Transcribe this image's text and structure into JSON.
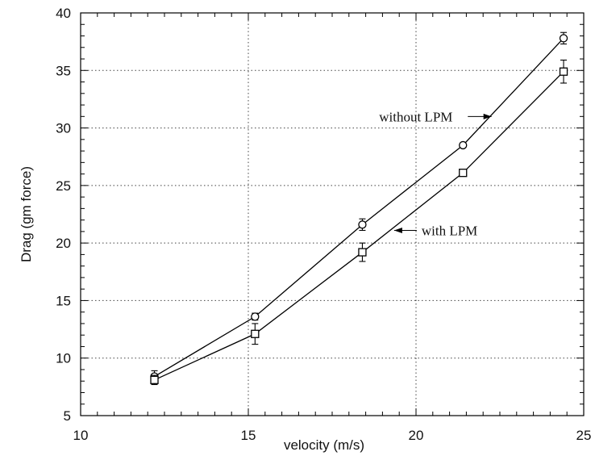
{
  "chart_data": {
    "type": "line",
    "title": "",
    "xlabel": "velocity (m/s)",
    "ylabel": "Drag (gm force)",
    "xlim": [
      10,
      25
    ],
    "ylim": [
      5,
      40
    ],
    "xticks": [
      10,
      15,
      20,
      25
    ],
    "yticks": [
      5,
      10,
      15,
      20,
      25,
      30,
      35,
      40
    ],
    "grid": true,
    "series": [
      {
        "name": "without LPM",
        "marker": "circle",
        "x": [
          12.2,
          15.2,
          18.4,
          21.4,
          24.4
        ],
        "y": [
          8.4,
          13.6,
          21.6,
          28.5,
          37.8
        ],
        "err": [
          0.5,
          0.3,
          0.5,
          0.2,
          0.5
        ]
      },
      {
        "name": "with LPM",
        "marker": "square",
        "x": [
          12.2,
          15.2,
          18.4,
          21.4,
          24.4
        ],
        "y": [
          8.1,
          12.1,
          19.2,
          26.1,
          34.9
        ],
        "err": [
          0.4,
          0.9,
          0.8,
          0.2,
          1.0
        ]
      }
    ],
    "annotations": [
      {
        "text": "without LPM",
        "series": 0,
        "label_x": 18.9,
        "label_y": 31.0,
        "arrow_to_x": 22.3,
        "arrow_to_y": 31.0
      },
      {
        "text": "with LPM",
        "series": 1,
        "label_x": 19.3,
        "label_y": 21.1,
        "arrow_to_x": 19.3,
        "arrow_to_y": 21.1
      }
    ]
  }
}
